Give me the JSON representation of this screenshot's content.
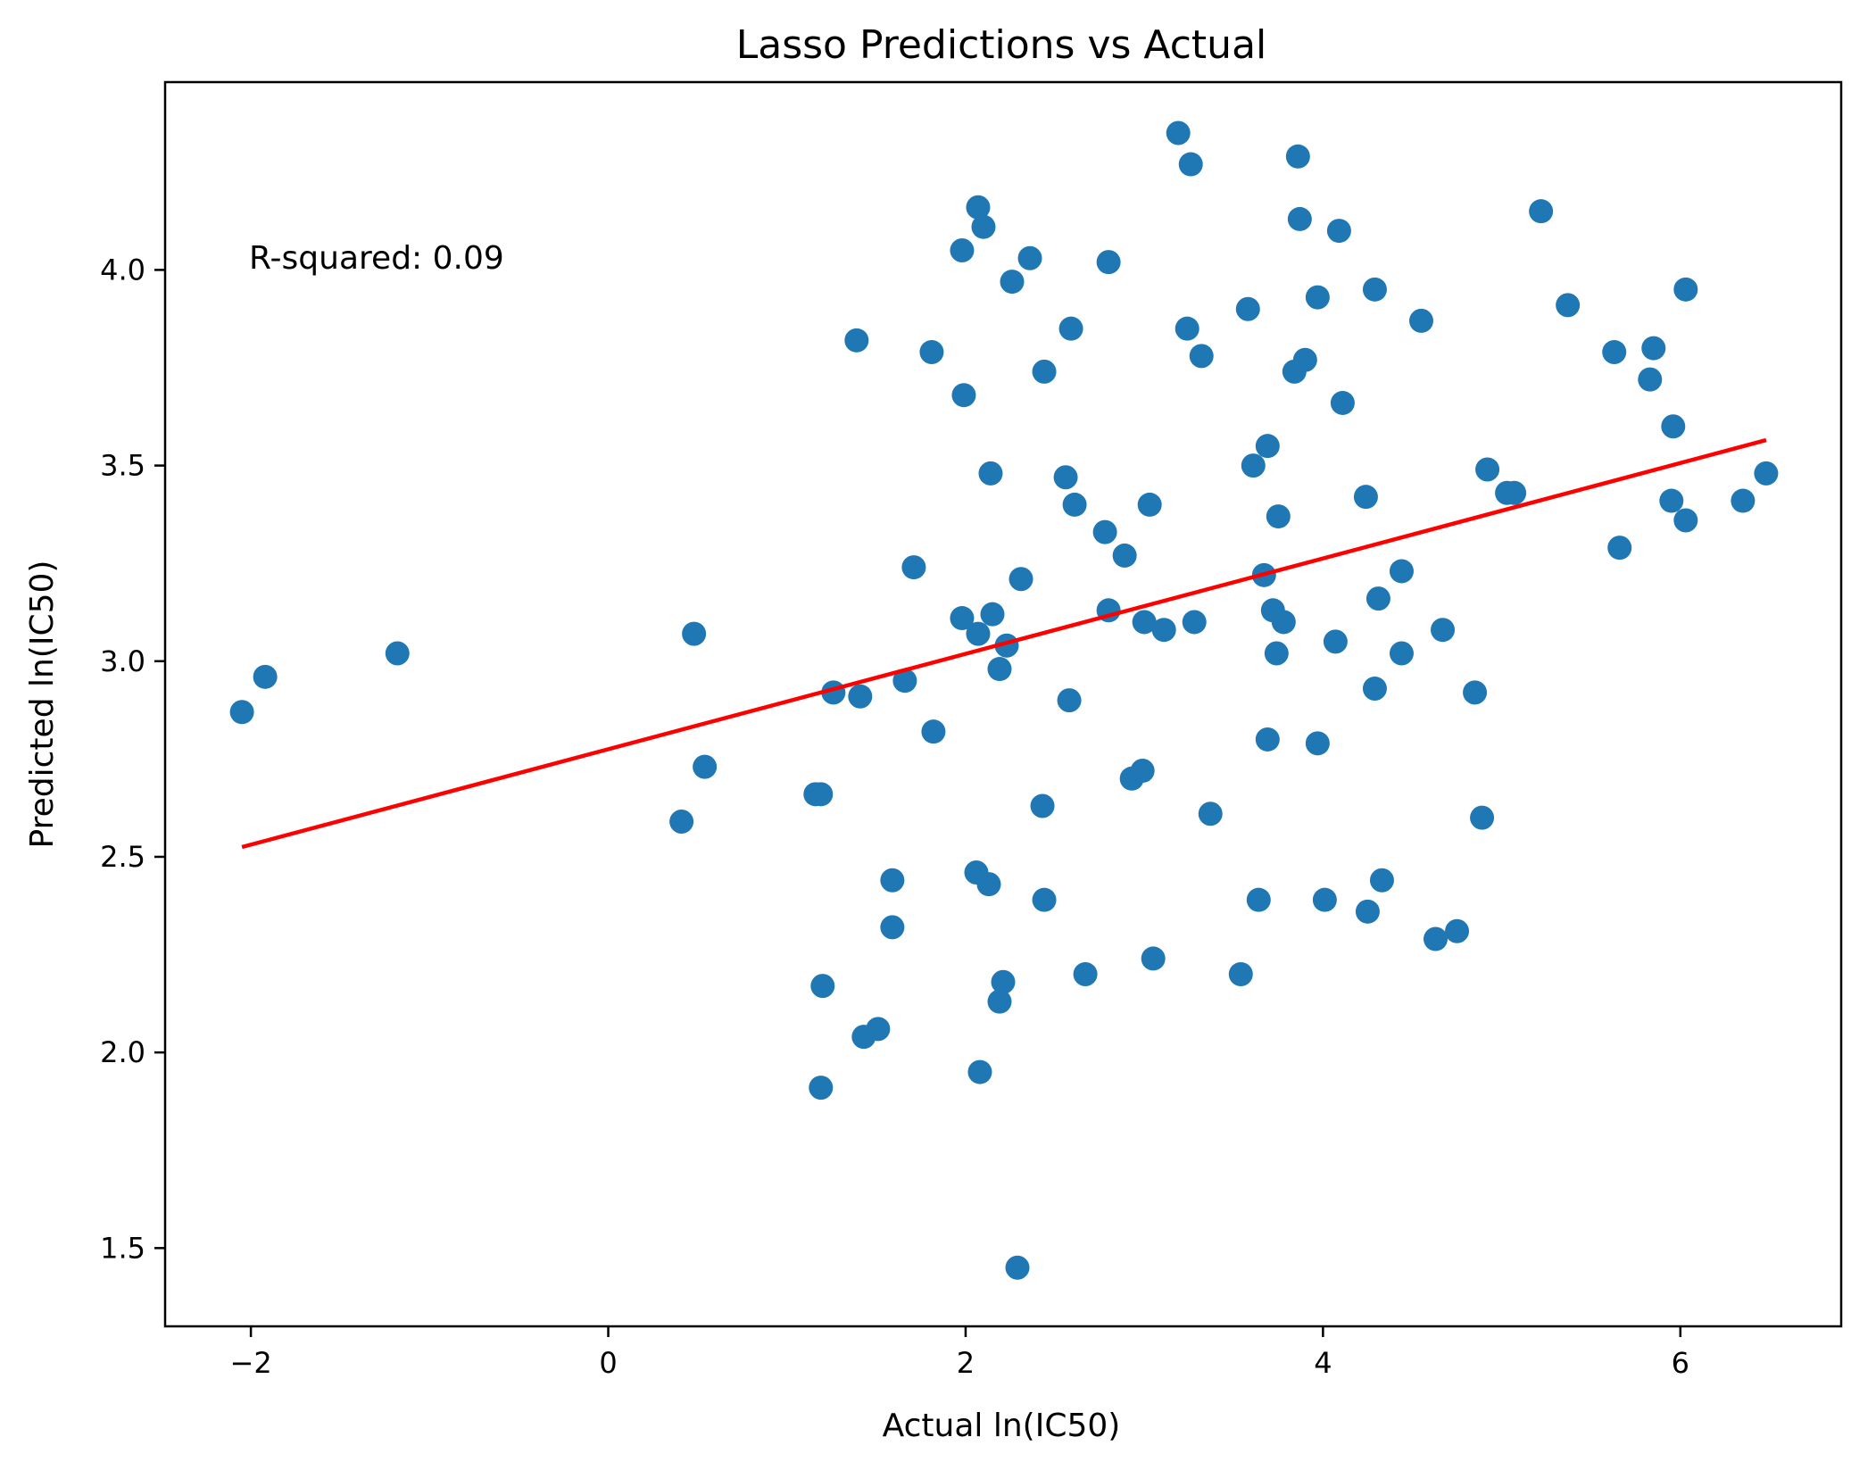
{
  "chart_data": {
    "type": "scatter",
    "title": "Lasso Predictions vs Actual",
    "xlabel": "Actual ln(IC50)",
    "ylabel": "Predicted ln(IC50)",
    "xlim": [
      -2.48,
      6.9
    ],
    "ylim": [
      1.3,
      4.48
    ],
    "xticks": [
      -2,
      0,
      2,
      4,
      6
    ],
    "xtick_labels": [
      "−2",
      "0",
      "2",
      "4",
      "6"
    ],
    "yticks": [
      1.5,
      2.0,
      2.5,
      3.0,
      3.5,
      4.0
    ],
    "ytick_labels": [
      "1.5",
      "2.0",
      "2.5",
      "3.0",
      "3.5",
      "4.0"
    ],
    "grid": false,
    "annotation": "R-squared: 0.09",
    "point_color": "#1f77b4",
    "line_color": "#ff0000",
    "fit_line": {
      "x": [
        -2.05,
        6.48
      ],
      "y": [
        2.525,
        3.565
      ]
    },
    "points": [
      [
        -2.05,
        2.87
      ],
      [
        -1.92,
        2.96
      ],
      [
        -1.18,
        3.02
      ],
      [
        0.41,
        2.59
      ],
      [
        0.48,
        3.07
      ],
      [
        0.54,
        2.73
      ],
      [
        1.16,
        2.66
      ],
      [
        1.19,
        2.66
      ],
      [
        1.19,
        1.91
      ],
      [
        1.2,
        2.17
      ],
      [
        1.26,
        2.92
      ],
      [
        1.39,
        3.82
      ],
      [
        1.41,
        2.91
      ],
      [
        1.43,
        2.04
      ],
      [
        1.51,
        2.06
      ],
      [
        1.59,
        2.44
      ],
      [
        1.59,
        2.32
      ],
      [
        1.66,
        2.95
      ],
      [
        1.71,
        3.24
      ],
      [
        1.81,
        3.79
      ],
      [
        1.82,
        2.82
      ],
      [
        1.98,
        4.05
      ],
      [
        1.98,
        3.11
      ],
      [
        1.99,
        3.68
      ],
      [
        2.06,
        2.46
      ],
      [
        2.07,
        4.16
      ],
      [
        2.07,
        3.07
      ],
      [
        2.08,
        1.95
      ],
      [
        2.1,
        4.11
      ],
      [
        2.13,
        2.43
      ],
      [
        2.14,
        3.48
      ],
      [
        2.15,
        3.12
      ],
      [
        2.19,
        2.98
      ],
      [
        2.19,
        2.13
      ],
      [
        2.21,
        2.18
      ],
      [
        2.23,
        3.04
      ],
      [
        2.26,
        3.97
      ],
      [
        2.29,
        1.45
      ],
      [
        2.31,
        3.21
      ],
      [
        2.36,
        4.03
      ],
      [
        2.43,
        2.63
      ],
      [
        2.44,
        3.74
      ],
      [
        2.44,
        2.39
      ],
      [
        2.56,
        3.47
      ],
      [
        2.58,
        2.9
      ],
      [
        2.59,
        3.85
      ],
      [
        2.61,
        3.4
      ],
      [
        2.67,
        2.2
      ],
      [
        2.78,
        3.33
      ],
      [
        2.8,
        4.02
      ],
      [
        2.8,
        3.13
      ],
      [
        2.89,
        3.27
      ],
      [
        2.93,
        2.7
      ],
      [
        2.99,
        2.72
      ],
      [
        3.0,
        3.1
      ],
      [
        3.03,
        3.4
      ],
      [
        3.05,
        2.24
      ],
      [
        3.11,
        3.08
      ],
      [
        3.19,
        4.35
      ],
      [
        3.24,
        3.85
      ],
      [
        3.26,
        4.27
      ],
      [
        3.28,
        3.1
      ],
      [
        3.32,
        3.78
      ],
      [
        3.37,
        2.61
      ],
      [
        3.54,
        2.2
      ],
      [
        3.58,
        3.9
      ],
      [
        3.61,
        3.5
      ],
      [
        3.64,
        2.39
      ],
      [
        3.67,
        3.22
      ],
      [
        3.69,
        3.55
      ],
      [
        3.69,
        2.8
      ],
      [
        3.72,
        3.13
      ],
      [
        3.74,
        3.02
      ],
      [
        3.75,
        3.37
      ],
      [
        3.78,
        3.1
      ],
      [
        3.84,
        3.74
      ],
      [
        3.86,
        4.29
      ],
      [
        3.87,
        4.13
      ],
      [
        3.9,
        3.77
      ],
      [
        3.97,
        3.93
      ],
      [
        3.97,
        2.79
      ],
      [
        4.01,
        2.39
      ],
      [
        4.07,
        3.05
      ],
      [
        4.09,
        4.1
      ],
      [
        4.11,
        3.66
      ],
      [
        4.24,
        3.42
      ],
      [
        4.25,
        2.36
      ],
      [
        4.29,
        3.95
      ],
      [
        4.29,
        2.93
      ],
      [
        4.31,
        3.16
      ],
      [
        4.33,
        2.44
      ],
      [
        4.44,
        3.23
      ],
      [
        4.44,
        3.02
      ],
      [
        4.55,
        3.87
      ],
      [
        4.63,
        2.29
      ],
      [
        4.67,
        3.08
      ],
      [
        4.75,
        2.31
      ],
      [
        4.85,
        2.92
      ],
      [
        4.89,
        2.6
      ],
      [
        4.92,
        3.49
      ],
      [
        5.03,
        3.43
      ],
      [
        5.07,
        3.43
      ],
      [
        5.22,
        4.15
      ],
      [
        5.37,
        3.91
      ],
      [
        5.63,
        3.79
      ],
      [
        5.66,
        3.29
      ],
      [
        5.83,
        3.72
      ],
      [
        5.85,
        3.8
      ],
      [
        5.95,
        3.41
      ],
      [
        5.96,
        3.6
      ],
      [
        6.03,
        3.95
      ],
      [
        6.03,
        3.36
      ],
      [
        6.35,
        3.41
      ],
      [
        6.48,
        3.48
      ]
    ]
  }
}
